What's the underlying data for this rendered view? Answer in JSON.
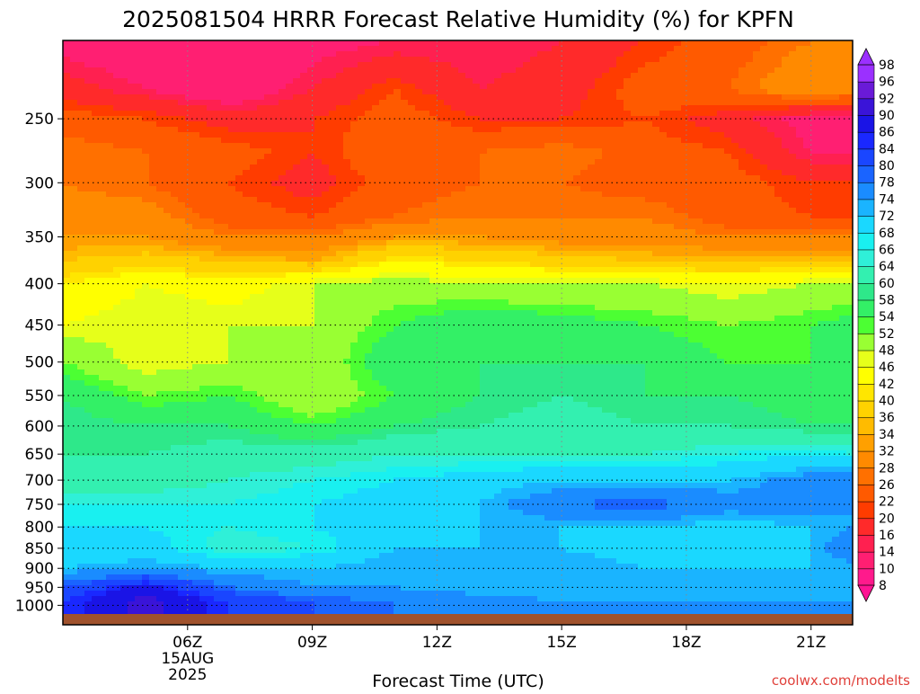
{
  "chart_data": {
    "type": "heatmap",
    "title": "2025081504 HRRR Forecast Relative Humidity (%) for KPFN",
    "xlabel": "Forecast Time (UTC)",
    "ylabel": "",
    "x": {
      "ticks": [
        "06Z",
        "09Z",
        "12Z",
        "15Z",
        "18Z",
        "21Z"
      ],
      "tick_hours": [
        6,
        9,
        12,
        15,
        18,
        21
      ],
      "date_line_1": "15AUG",
      "date_line_2": "2025",
      "range_hours": [
        3,
        22
      ]
    },
    "y": {
      "ticks": [
        250,
        300,
        350,
        400,
        450,
        500,
        550,
        600,
        650,
        700,
        750,
        800,
        850,
        900,
        950,
        1000
      ],
      "range_hPa": [
        200,
        1025
      ],
      "scale": "log-pressure",
      "inverted": true
    },
    "grid": true,
    "ground_fill": "#a0522d",
    "colorbar": {
      "placement": "right",
      "levels": [
        8,
        10,
        14,
        16,
        20,
        22,
        26,
        28,
        32,
        34,
        36,
        40,
        42,
        46,
        48,
        52,
        54,
        58,
        60,
        64,
        66,
        68,
        72,
        74,
        78,
        80,
        84,
        86,
        90,
        92,
        96,
        98
      ],
      "colors": [
        "#ff1493",
        "#ff1a8c",
        "#ff1f72",
        "#ff2050",
        "#ff2a2a",
        "#ff3c00",
        "#ff5a00",
        "#ff7000",
        "#ff8a00",
        "#ffa000",
        "#ffbb00",
        "#ffd200",
        "#ffe600",
        "#ffff00",
        "#e6ff1a",
        "#99ff33",
        "#4cff33",
        "#33f066",
        "#2ee88a",
        "#33f0b0",
        "#2ff0d8",
        "#19f0f0",
        "#1ad8ff",
        "#1ab4ff",
        "#1a8cff",
        "#1a64ff",
        "#1a46ff",
        "#1a28ff",
        "#1a14e6",
        "#3a14d8",
        "#6a1ad8",
        "#9b30ff"
      ]
    },
    "rh_grid": {
      "hours": [
        3,
        5,
        7,
        9,
        11,
        13,
        15,
        17,
        19,
        21,
        22
      ],
      "pressures": [
        200,
        230,
        250,
        275,
        300,
        330,
        350,
        375,
        400,
        450,
        500,
        550,
        600,
        650,
        700,
        750,
        800,
        850,
        900,
        950,
        990
      ],
      "values": [
        [
          12,
          10,
          10,
          12,
          14,
          14,
          16,
          20,
          24,
          28,
          30
        ],
        [
          18,
          14,
          10,
          16,
          22,
          16,
          18,
          24,
          26,
          32,
          30
        ],
        [
          24,
          22,
          18,
          20,
          24,
          20,
          20,
          22,
          18,
          12,
          12
        ],
        [
          28,
          26,
          24,
          20,
          26,
          26,
          28,
          24,
          22,
          14,
          14
        ],
        [
          28,
          26,
          22,
          18,
          24,
          26,
          26,
          24,
          24,
          20,
          20
        ],
        [
          30,
          30,
          24,
          22,
          26,
          28,
          28,
          28,
          24,
          22,
          22
        ],
        [
          32,
          32,
          28,
          28,
          32,
          32,
          30,
          30,
          28,
          28,
          28
        ],
        [
          36,
          38,
          36,
          34,
          42,
          40,
          38,
          36,
          36,
          36,
          36
        ],
        [
          42,
          46,
          44,
          48,
          50,
          48,
          48,
          48,
          46,
          48,
          48
        ],
        [
          46,
          48,
          48,
          48,
          54,
          58,
          56,
          54,
          52,
          54,
          56
        ],
        [
          52,
          46,
          48,
          48,
          58,
          58,
          58,
          58,
          54,
          54,
          54
        ],
        [
          58,
          52,
          54,
          48,
          54,
          58,
          60,
          58,
          58,
          56,
          58
        ],
        [
          60,
          58,
          58,
          54,
          58,
          60,
          62,
          60,
          60,
          58,
          58
        ],
        [
          60,
          60,
          62,
          62,
          64,
          64,
          64,
          64,
          66,
          68,
          66
        ],
        [
          62,
          62,
          64,
          66,
          68,
          70,
          72,
          72,
          72,
          76,
          78
        ],
        [
          66,
          66,
          66,
          68,
          70,
          72,
          78,
          80,
          76,
          76,
          74
        ],
        [
          68,
          68,
          66,
          68,
          70,
          72,
          72,
          72,
          70,
          72,
          74
        ],
        [
          68,
          70,
          64,
          66,
          72,
          72,
          72,
          70,
          70,
          72,
          78
        ],
        [
          72,
          74,
          72,
          72,
          74,
          74,
          74,
          72,
          72,
          72,
          72
        ],
        [
          80,
          88,
          78,
          74,
          74,
          72,
          72,
          72,
          72,
          72,
          72
        ],
        [
          84,
          92,
          84,
          80,
          78,
          76,
          74,
          74,
          74,
          74,
          74
        ]
      ]
    },
    "credit": "coolwx.com/modelts"
  }
}
